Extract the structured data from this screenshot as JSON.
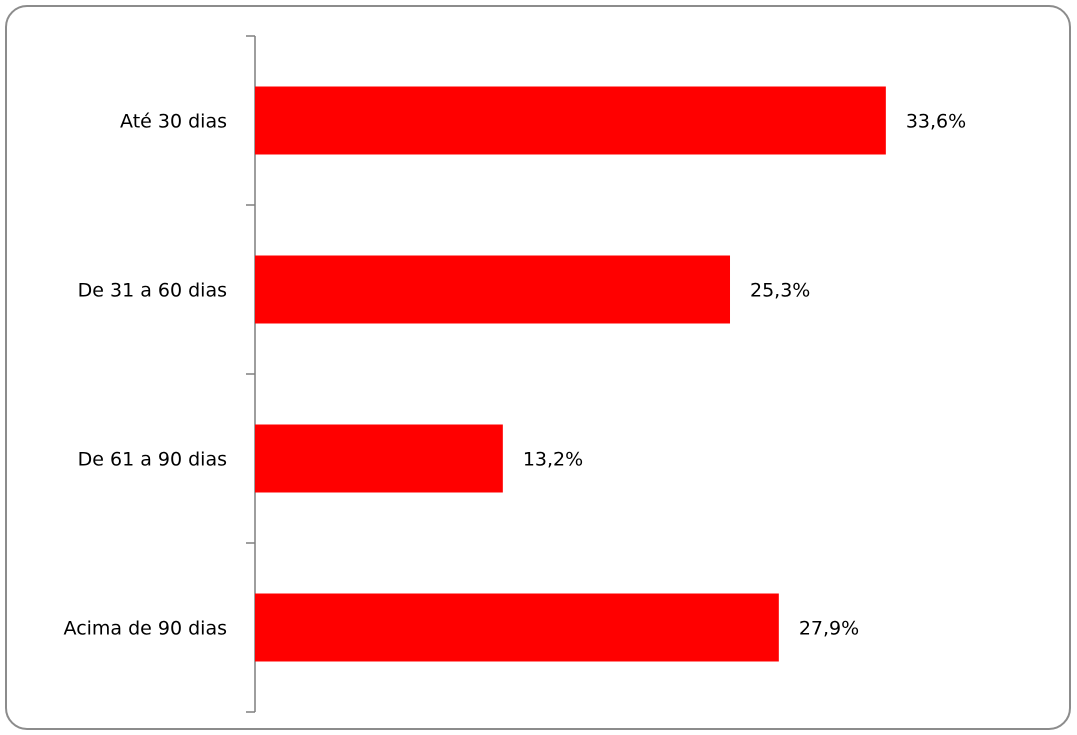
{
  "chart_data": {
    "type": "bar",
    "orientation": "horizontal",
    "categories": [
      "Até 30 dias",
      "De 31 a 60 dias",
      "De 61 a 90 dias",
      "Acima de 90 dias"
    ],
    "values": [
      33.6,
      25.3,
      13.2,
      27.9
    ],
    "value_labels": [
      "33,6%",
      "25,3%",
      "13,2%",
      "27,9%"
    ],
    "unit": "%",
    "xlim": [
      0,
      40
    ],
    "title": "",
    "xlabel": "",
    "ylabel": "",
    "grid": false,
    "legend": "none",
    "bar_color": "#ff0000",
    "axis_color": "#7f7f7f"
  }
}
